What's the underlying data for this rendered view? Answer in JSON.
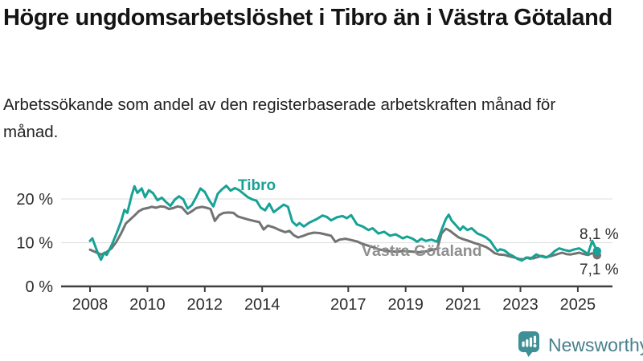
{
  "header": {
    "title": "Högre ungdomsarbetslöshet i Tibro än i Västra Götaland",
    "subtitle": "Arbetssökande som andel av den registerbaserade arbetskraften månad för månad."
  },
  "footer": {
    "brand": "Newsworthy"
  },
  "colors": {
    "tibro": "#17A295",
    "vastra_gotaland": "#737373",
    "axis": "#3F3F3F",
    "grid": "#E3E3E3",
    "text": "#2E2E2E",
    "brand_icon": "#3E8F96",
    "brand_text": "#48808C"
  },
  "chart_data": {
    "type": "line",
    "title": "Högre ungdomsarbetslöshet i Tibro än i Västra Götaland",
    "subtitle": "Arbetssökande som andel av den registerbaserade arbetskraften månad för månad.",
    "unit": "%",
    "grid": true,
    "x_axis": {
      "range": [
        2007.9,
        2026.2
      ],
      "ticks": [
        {
          "year": 2008,
          "label": "2008"
        },
        {
          "year": 2010,
          "label": "2010"
        },
        {
          "year": 2012,
          "label": "2012"
        },
        {
          "year": 2014,
          "label": "2014"
        },
        {
          "year": 2017,
          "label": "2017"
        },
        {
          "year": 2019,
          "label": "2019"
        },
        {
          "year": 2021,
          "label": "2021"
        },
        {
          "year": 2023,
          "label": "2023"
        },
        {
          "year": 2025,
          "label": "2025"
        }
      ]
    },
    "y_axis": {
      "range": [
        0,
        26
      ],
      "ticks": [
        {
          "value": 0,
          "label": "0 %"
        },
        {
          "value": 10,
          "label": "10 %"
        },
        {
          "value": 20,
          "label": "20 %"
        }
      ]
    },
    "series": [
      {
        "key": "tibro",
        "name": "Tibro",
        "color": "#17A295",
        "end_label": "8,1 %",
        "end_value": 8.1,
        "points": [
          [
            2008.0,
            10.4
          ],
          [
            2008.08,
            11.0
          ],
          [
            2008.25,
            8.0
          ],
          [
            2008.38,
            6.1
          ],
          [
            2008.5,
            7.7
          ],
          [
            2008.58,
            7.2
          ],
          [
            2008.75,
            9.4
          ],
          [
            2008.92,
            12.0
          ],
          [
            2009.08,
            14.8
          ],
          [
            2009.2,
            17.5
          ],
          [
            2009.3,
            16.8
          ],
          [
            2009.45,
            20.8
          ],
          [
            2009.55,
            22.9
          ],
          [
            2009.65,
            21.4
          ],
          [
            2009.8,
            22.4
          ],
          [
            2009.92,
            20.4
          ],
          [
            2010.05,
            22.0
          ],
          [
            2010.2,
            21.3
          ],
          [
            2010.35,
            19.7
          ],
          [
            2010.5,
            20.3
          ],
          [
            2010.65,
            19.3
          ],
          [
            2010.8,
            18.4
          ],
          [
            2010.95,
            19.8
          ],
          [
            2011.1,
            20.6
          ],
          [
            2011.25,
            19.9
          ],
          [
            2011.4,
            17.8
          ],
          [
            2011.55,
            18.6
          ],
          [
            2011.7,
            20.4
          ],
          [
            2011.85,
            22.4
          ],
          [
            2012.0,
            21.6
          ],
          [
            2012.15,
            19.7
          ],
          [
            2012.3,
            18.3
          ],
          [
            2012.45,
            21.2
          ],
          [
            2012.6,
            22.2
          ],
          [
            2012.75,
            23.0
          ],
          [
            2012.9,
            21.9
          ],
          [
            2013.05,
            22.5
          ],
          [
            2013.2,
            22.0
          ],
          [
            2013.35,
            21.2
          ],
          [
            2013.5,
            20.4
          ],
          [
            2013.65,
            19.9
          ],
          [
            2013.8,
            19.6
          ],
          [
            2013.95,
            18.0
          ],
          [
            2014.1,
            17.4
          ],
          [
            2014.25,
            18.9
          ],
          [
            2014.4,
            17.0
          ],
          [
            2014.55,
            17.7
          ],
          [
            2014.75,
            18.7
          ],
          [
            2014.9,
            18.2
          ],
          [
            2015.05,
            14.8
          ],
          [
            2015.2,
            13.9
          ],
          [
            2015.3,
            14.5
          ],
          [
            2015.45,
            13.7
          ],
          [
            2015.65,
            14.6
          ],
          [
            2015.9,
            15.4
          ],
          [
            2016.1,
            16.2
          ],
          [
            2016.25,
            15.9
          ],
          [
            2016.4,
            15.1
          ],
          [
            2016.6,
            15.8
          ],
          [
            2016.8,
            16.1
          ],
          [
            2016.95,
            15.6
          ],
          [
            2017.1,
            16.3
          ],
          [
            2017.3,
            14.2
          ],
          [
            2017.5,
            13.7
          ],
          [
            2017.7,
            12.9
          ],
          [
            2017.85,
            13.3
          ],
          [
            2018.05,
            12.1
          ],
          [
            2018.25,
            12.5
          ],
          [
            2018.45,
            11.6
          ],
          [
            2018.65,
            11.9
          ],
          [
            2018.9,
            11.0
          ],
          [
            2019.05,
            11.4
          ],
          [
            2019.25,
            10.9
          ],
          [
            2019.4,
            10.2
          ],
          [
            2019.55,
            10.9
          ],
          [
            2019.7,
            10.4
          ],
          [
            2019.9,
            10.7
          ],
          [
            2020.1,
            10.2
          ],
          [
            2020.25,
            12.9
          ],
          [
            2020.4,
            15.4
          ],
          [
            2020.5,
            16.4
          ],
          [
            2020.6,
            15.1
          ],
          [
            2020.75,
            14.0
          ],
          [
            2020.9,
            12.9
          ],
          [
            2021.0,
            13.7
          ],
          [
            2021.15,
            12.9
          ],
          [
            2021.3,
            13.3
          ],
          [
            2021.5,
            12.1
          ],
          [
            2021.65,
            11.7
          ],
          [
            2021.8,
            11.2
          ],
          [
            2021.95,
            10.4
          ],
          [
            2022.1,
            8.9
          ],
          [
            2022.2,
            8.1
          ],
          [
            2022.3,
            8.5
          ],
          [
            2022.45,
            8.2
          ],
          [
            2022.6,
            7.4
          ],
          [
            2022.75,
            6.9
          ],
          [
            2022.9,
            6.3
          ],
          [
            2023.05,
            5.9
          ],
          [
            2023.2,
            6.6
          ],
          [
            2023.35,
            6.3
          ],
          [
            2023.55,
            7.3
          ],
          [
            2023.7,
            6.9
          ],
          [
            2023.9,
            6.6
          ],
          [
            2024.05,
            7.2
          ],
          [
            2024.2,
            8.1
          ],
          [
            2024.35,
            8.7
          ],
          [
            2024.55,
            8.3
          ],
          [
            2024.7,
            8.1
          ],
          [
            2024.9,
            8.5
          ],
          [
            2025.05,
            8.7
          ],
          [
            2025.2,
            8.1
          ],
          [
            2025.35,
            7.4
          ],
          [
            2025.5,
            10.4
          ],
          [
            2025.67,
            8.1
          ]
        ]
      },
      {
        "key": "vastra-gotaland",
        "name": "Västra Götaland",
        "color": "#737373",
        "end_label": "7,1 %",
        "end_value": 7.1,
        "points": [
          [
            2008.0,
            8.4
          ],
          [
            2008.17,
            7.9
          ],
          [
            2008.38,
            7.3
          ],
          [
            2008.55,
            7.7
          ],
          [
            2008.75,
            8.7
          ],
          [
            2008.92,
            10.2
          ],
          [
            2009.08,
            12.1
          ],
          [
            2009.25,
            14.4
          ],
          [
            2009.4,
            15.3
          ],
          [
            2009.55,
            16.2
          ],
          [
            2009.7,
            17.2
          ],
          [
            2009.85,
            17.7
          ],
          [
            2010.0,
            17.9
          ],
          [
            2010.15,
            18.2
          ],
          [
            2010.3,
            18.0
          ],
          [
            2010.45,
            18.3
          ],
          [
            2010.6,
            18.2
          ],
          [
            2010.75,
            17.7
          ],
          [
            2010.9,
            17.9
          ],
          [
            2011.05,
            18.3
          ],
          [
            2011.2,
            18.1
          ],
          [
            2011.4,
            16.6
          ],
          [
            2011.55,
            17.2
          ],
          [
            2011.7,
            17.9
          ],
          [
            2011.9,
            18.2
          ],
          [
            2012.05,
            18.0
          ],
          [
            2012.2,
            17.7
          ],
          [
            2012.35,
            15.0
          ],
          [
            2012.5,
            16.3
          ],
          [
            2012.65,
            16.8
          ],
          [
            2012.85,
            16.9
          ],
          [
            2013.0,
            16.8
          ],
          [
            2013.15,
            16.0
          ],
          [
            2013.3,
            15.7
          ],
          [
            2013.5,
            15.3
          ],
          [
            2013.7,
            15.0
          ],
          [
            2013.9,
            14.7
          ],
          [
            2014.05,
            13.0
          ],
          [
            2014.2,
            13.9
          ],
          [
            2014.4,
            13.5
          ],
          [
            2014.6,
            12.9
          ],
          [
            2014.8,
            12.4
          ],
          [
            2014.95,
            12.7
          ],
          [
            2015.1,
            11.7
          ],
          [
            2015.25,
            11.2
          ],
          [
            2015.45,
            11.6
          ],
          [
            2015.6,
            12.0
          ],
          [
            2015.8,
            12.3
          ],
          [
            2016.0,
            12.2
          ],
          [
            2016.2,
            11.9
          ],
          [
            2016.4,
            11.6
          ],
          [
            2016.55,
            10.2
          ],
          [
            2016.7,
            10.7
          ],
          [
            2016.9,
            10.9
          ],
          [
            2017.1,
            10.6
          ],
          [
            2017.3,
            10.3
          ],
          [
            2017.5,
            9.7
          ],
          [
            2017.7,
            9.3
          ],
          [
            2017.9,
            8.9
          ],
          [
            2018.1,
            8.4
          ],
          [
            2018.3,
            8.2
          ],
          [
            2018.5,
            8.0
          ],
          [
            2018.7,
            7.9
          ],
          [
            2018.9,
            8.1
          ],
          [
            2019.1,
            8.0
          ],
          [
            2019.3,
            7.9
          ],
          [
            2019.5,
            7.8
          ],
          [
            2019.7,
            8.0
          ],
          [
            2019.9,
            8.3
          ],
          [
            2020.1,
            8.6
          ],
          [
            2020.25,
            12.1
          ],
          [
            2020.4,
            13.2
          ],
          [
            2020.55,
            12.7
          ],
          [
            2020.7,
            11.9
          ],
          [
            2020.85,
            11.2
          ],
          [
            2021.0,
            10.8
          ],
          [
            2021.2,
            10.4
          ],
          [
            2021.4,
            9.9
          ],
          [
            2021.6,
            9.5
          ],
          [
            2021.8,
            9.0
          ],
          [
            2021.95,
            8.4
          ],
          [
            2022.1,
            7.6
          ],
          [
            2022.25,
            7.3
          ],
          [
            2022.45,
            7.2
          ],
          [
            2022.6,
            6.9
          ],
          [
            2022.8,
            6.6
          ],
          [
            2022.95,
            6.3
          ],
          [
            2023.1,
            6.2
          ],
          [
            2023.25,
            6.6
          ],
          [
            2023.45,
            6.4
          ],
          [
            2023.6,
            6.7
          ],
          [
            2023.75,
            7.0
          ],
          [
            2023.9,
            6.7
          ],
          [
            2024.05,
            6.9
          ],
          [
            2024.25,
            7.3
          ],
          [
            2024.45,
            7.7
          ],
          [
            2024.6,
            7.4
          ],
          [
            2024.75,
            7.3
          ],
          [
            2024.9,
            7.5
          ],
          [
            2025.05,
            7.7
          ],
          [
            2025.2,
            7.4
          ],
          [
            2025.35,
            7.2
          ],
          [
            2025.5,
            7.6
          ],
          [
            2025.67,
            7.1
          ]
        ]
      }
    ],
    "legend_position": "inline-labels"
  }
}
